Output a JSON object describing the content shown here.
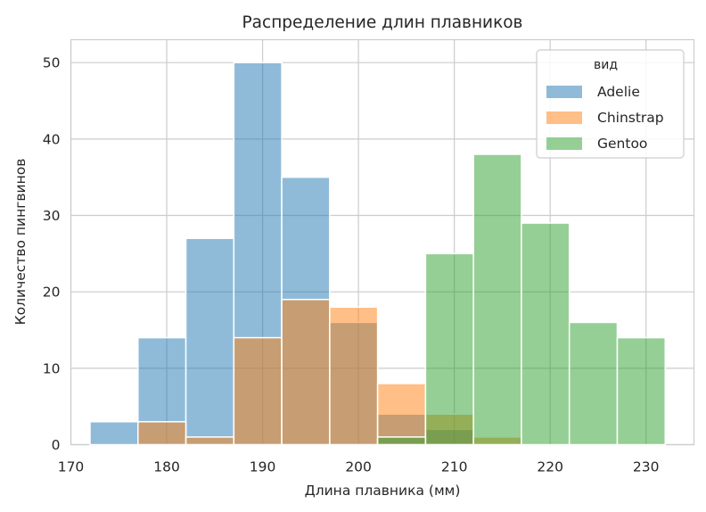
{
  "chart_data": {
    "type": "histogram",
    "title": "Распределение длин плавников",
    "xlabel": "Длина плавника (мм)",
    "ylabel": "Количество пингвинов",
    "xlim": [
      170,
      235
    ],
    "ylim": [
      0,
      53
    ],
    "xticks": [
      170,
      180,
      190,
      200,
      210,
      220,
      230
    ],
    "yticks": [
      0,
      10,
      20,
      30,
      40,
      50
    ],
    "bin_edges": [
      172,
      177,
      182,
      187,
      192,
      197,
      202,
      207,
      212,
      217,
      222,
      227,
      232
    ],
    "grid": true,
    "legend": {
      "title": "вид",
      "position": "top-right"
    },
    "series": [
      {
        "name": "Adelie",
        "color": "#1f77b4",
        "values": [
          3,
          14,
          27,
          50,
          35,
          16,
          4,
          2,
          0,
          0,
          0,
          0
        ]
      },
      {
        "name": "Chinstrap",
        "color": "#ff7f0e",
        "values": [
          0,
          3,
          1,
          14,
          19,
          18,
          8,
          4,
          1,
          0,
          0,
          0
        ]
      },
      {
        "name": "Gentoo",
        "color": "#2ca02c",
        "values": [
          0,
          0,
          0,
          0,
          0,
          0,
          1,
          25,
          38,
          29,
          16,
          14
        ]
      }
    ],
    "opacity": 0.5
  }
}
